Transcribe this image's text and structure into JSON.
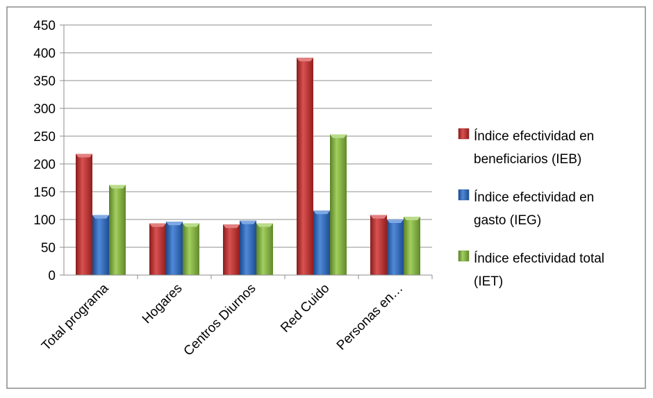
{
  "chart_data": {
    "type": "bar",
    "categories": [
      "Total programa",
      "Hogares",
      "Centros Diurnos",
      "Red Cuido",
      "Personas en…"
    ],
    "series": [
      {
        "name": "Índice efectividad en beneficiarios (IEB)",
        "legend_lines": [
          "Índice efectividad en",
          "beneficiarios (IEB)"
        ],
        "values": [
          218,
          93,
          91,
          391,
          108
        ],
        "color": "#d12b2b"
      },
      {
        "name": "Índice efectividad en gasto (IEG)",
        "legend_lines": [
          "Índice efectividad en",
          "gasto (IEG)"
        ],
        "values": [
          108,
          96,
          98,
          116,
          100
        ],
        "color": "#2a6fd1"
      },
      {
        "name": "Índice efectividad total (IET)",
        "legend_lines": [
          "Índice efectividad total",
          "(IET)"
        ],
        "values": [
          162,
          93,
          93,
          253,
          105
        ],
        "color": "#8cc43c"
      }
    ],
    "ylim": [
      0,
      450
    ],
    "yticks": [
      0,
      50,
      100,
      150,
      200,
      250,
      300,
      350,
      400,
      450
    ],
    "grid": true,
    "legend": "right"
  }
}
